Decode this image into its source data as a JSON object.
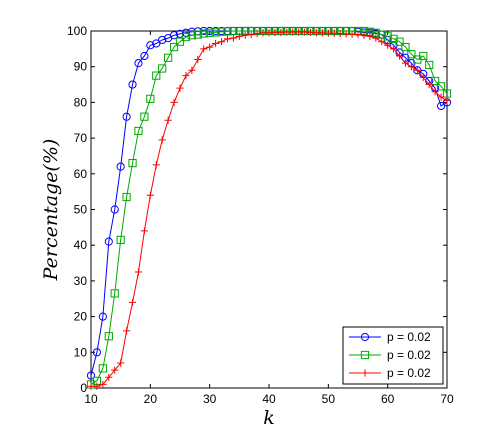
{
  "chart_data": {
    "type": "line",
    "title": "",
    "xlabel": "k",
    "ylabel": "Percentage(%)",
    "xlim": [
      10,
      70
    ],
    "ylim": [
      0,
      100
    ],
    "xticks": [
      10,
      20,
      30,
      40,
      50,
      60,
      70
    ],
    "yticks": [
      0,
      10,
      20,
      30,
      40,
      50,
      60,
      70,
      80,
      90,
      100
    ],
    "grid": false,
    "legend_position": "bottom-right",
    "x": [
      10,
      11,
      12,
      13,
      14,
      15,
      16,
      17,
      18,
      19,
      20,
      21,
      22,
      23,
      24,
      25,
      26,
      27,
      28,
      29,
      30,
      31,
      32,
      33,
      34,
      35,
      36,
      37,
      38,
      39,
      40,
      41,
      42,
      43,
      44,
      45,
      46,
      47,
      48,
      49,
      50,
      51,
      52,
      53,
      54,
      55,
      56,
      57,
      58,
      59,
      60,
      61,
      62,
      63,
      64,
      65,
      66,
      67,
      68,
      69,
      70
    ],
    "series": [
      {
        "name": "p = 0.02",
        "color": "#0000ff",
        "marker": "circle",
        "values": [
          3.5,
          10,
          20,
          41,
          50,
          62,
          76,
          85,
          91,
          93,
          96,
          96.5,
          97.5,
          98,
          98.8,
          99.2,
          99.5,
          99.8,
          99.9,
          100,
          100,
          100,
          100,
          100,
          100,
          100,
          100,
          100,
          100,
          100,
          100,
          100,
          100,
          100,
          100,
          100,
          100,
          100,
          100,
          100,
          100,
          100,
          100,
          100,
          100,
          99.8,
          99.6,
          99.5,
          99.3,
          99,
          97.5,
          96,
          94,
          92.5,
          91,
          89,
          88,
          86,
          84,
          79,
          80
        ]
      },
      {
        "name": "p = 0.02",
        "color": "#00aa00",
        "marker": "square",
        "values": [
          1,
          2,
          5.5,
          14.5,
          26.5,
          41.5,
          53.5,
          63,
          72,
          76,
          81,
          87.5,
          89.5,
          92.5,
          95.5,
          97,
          98.3,
          98.8,
          99,
          99.3,
          99.5,
          99.6,
          99.8,
          99.9,
          100,
          100,
          100,
          100,
          100,
          100,
          100,
          100,
          100,
          100,
          100,
          100,
          100,
          100,
          100,
          100,
          100,
          100,
          100,
          100,
          100,
          100,
          100,
          99.8,
          99.5,
          99,
          98.5,
          97.8,
          97,
          95.5,
          93.5,
          92,
          93,
          90.5,
          86,
          84.5,
          82.5
        ]
      },
      {
        "name": "p = 0.02",
        "color": "#ff0000",
        "marker": "plus",
        "values": [
          0.5,
          0.5,
          1,
          3,
          5,
          7,
          16,
          24,
          32.5,
          44,
          54,
          62.5,
          69.5,
          75,
          80,
          84,
          87.5,
          89,
          92,
          95,
          95.5,
          96.5,
          97,
          97.8,
          98,
          98.5,
          98.8,
          99,
          99.3,
          99.5,
          99.5,
          99.6,
          99.6,
          99.7,
          99.7,
          99.7,
          99.7,
          99.6,
          99.5,
          99.5,
          99.4,
          99.4,
          99.3,
          99.2,
          99.1,
          99,
          98.8,
          98.5,
          98,
          97,
          96,
          95,
          93,
          91,
          90,
          89,
          87,
          85,
          83,
          81.5,
          80.5
        ]
      }
    ]
  }
}
